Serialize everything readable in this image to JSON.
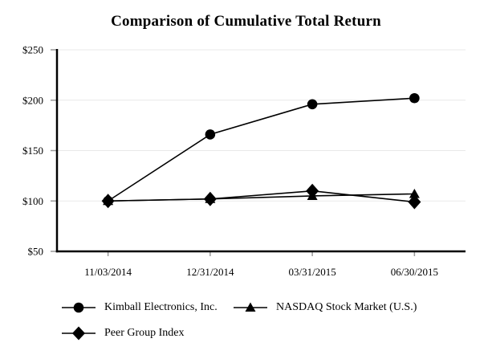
{
  "title": "Comparison of Cumulative Total Return",
  "chart_data": {
    "type": "line",
    "title": "Comparison of Cumulative Total Return",
    "categories": [
      "11/03/2014",
      "12/31/2014",
      "03/31/2015",
      "06/30/2015"
    ],
    "series": [
      {
        "name": "Kimball Electronics, Inc.",
        "marker": "circle",
        "values": [
          100,
          166,
          196,
          202
        ]
      },
      {
        "name": "NASDAQ Stock Market (U.S.)",
        "marker": "triangle",
        "values": [
          100,
          102,
          105,
          107
        ]
      },
      {
        "name": "Peer Group Index",
        "marker": "diamond",
        "values": [
          100,
          102,
          110,
          99
        ]
      }
    ],
    "xlabel": "",
    "ylabel": "",
    "ylim": [
      50,
      250
    ],
    "yticks": [
      50,
      100,
      150,
      200,
      250
    ],
    "ytick_labels": [
      "$50",
      "$100",
      "$150",
      "$200",
      "$250"
    ],
    "grid": true,
    "gridline_orientation": "horizontal",
    "legend_position": "bottom",
    "colors": {
      "line": "#000000",
      "marker": "#000000",
      "grid": "#e9e9e9",
      "axis": "#000000",
      "tick": "#999999",
      "background": "#ffffff"
    }
  }
}
